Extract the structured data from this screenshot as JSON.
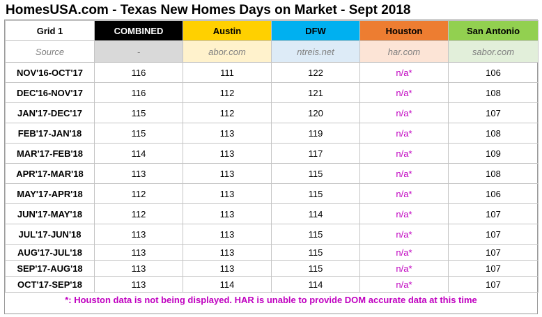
{
  "title": "HomesUSA.com - Texas New Homes Days on Market - Sept 2018",
  "grid_label": "Grid 1",
  "columns": [
    "COMBINED",
    "Austin",
    "DFW",
    "Houston",
    "San Antonio"
  ],
  "source": {
    "label": "Source",
    "values": [
      "-",
      "abor.com",
      "ntreis.net",
      "har.com",
      "sabor.com"
    ]
  },
  "rows": [
    {
      "period": "NOV'16-OCT'17",
      "values": [
        "116",
        "111",
        "122",
        "n/a*",
        "106"
      ]
    },
    {
      "period": "DEC'16-NOV'17",
      "values": [
        "116",
        "112",
        "121",
        "n/a*",
        "108"
      ]
    },
    {
      "period": "JAN'17-DEC'17",
      "values": [
        "115",
        "112",
        "120",
        "n/a*",
        "107"
      ]
    },
    {
      "period": "FEB'17-JAN'18",
      "values": [
        "115",
        "113",
        "119",
        "n/a*",
        "108"
      ]
    },
    {
      "period": "MAR'17-FEB'18",
      "values": [
        "114",
        "113",
        "117",
        "n/a*",
        "109"
      ]
    },
    {
      "period": "APR'17-MAR'18",
      "values": [
        "113",
        "113",
        "115",
        "n/a*",
        "108"
      ]
    },
    {
      "period": "MAY'17-APR'18",
      "values": [
        "112",
        "113",
        "115",
        "n/a*",
        "106"
      ]
    },
    {
      "period": "JUN'17-MAY'18",
      "values": [
        "112",
        "113",
        "114",
        "n/a*",
        "107"
      ]
    },
    {
      "period": "JUL'17-JUN'18",
      "values": [
        "113",
        "113",
        "115",
        "n/a*",
        "107"
      ]
    },
    {
      "period": "AUG'17-JUL'18",
      "values": [
        "113",
        "113",
        "115",
        "n/a*",
        "107"
      ]
    },
    {
      "period": "SEP'17-AUG'18",
      "values": [
        "113",
        "113",
        "115",
        "n/a*",
        "107"
      ]
    },
    {
      "period": "OCT'17-SEP'18",
      "values": [
        "113",
        "114",
        "114",
        "n/a*",
        "107"
      ]
    }
  ],
  "footnote": "*: Houston data is not being displayed. HAR is unable to provide DOM accurate data at this time",
  "colors": {
    "combined": "#000000",
    "austin": "#ffd000",
    "dfw": "#00b0f0",
    "houston": "#ed7d31",
    "san_antonio": "#92d050",
    "na_text": "#c000c0"
  }
}
